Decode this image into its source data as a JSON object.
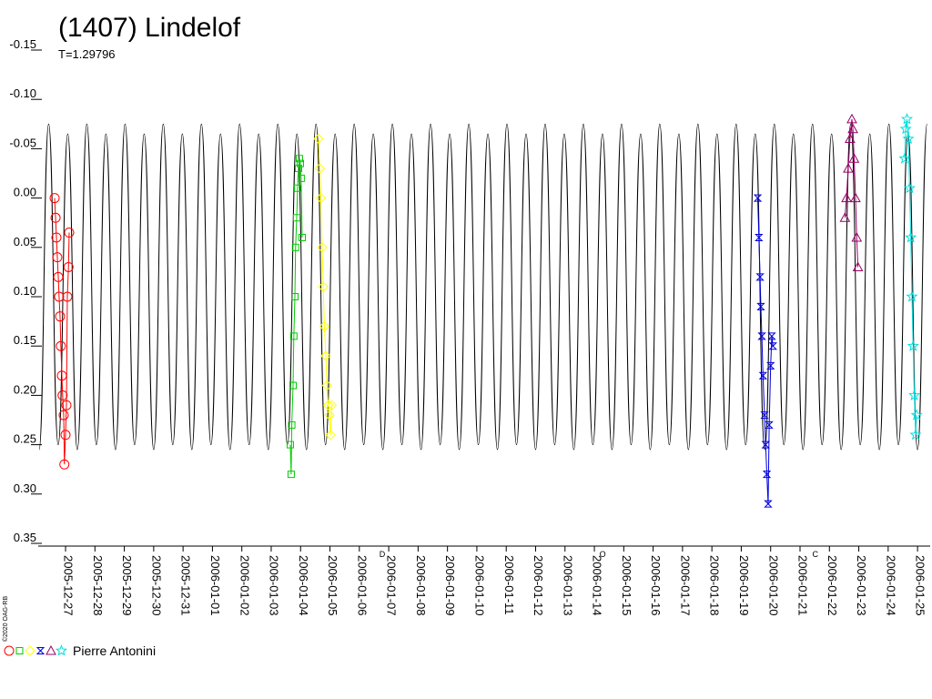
{
  "chart_data": {
    "type": "lightcurve",
    "title": "(1407) Lindelof",
    "subtitle": "T=1.29796",
    "credit": "©2020 OAG-RB",
    "legend": "Pierre Antonini",
    "xlim": [
      2453730.57,
      2453760.93
    ],
    "ylim": [
      -0.15,
      0.35
    ],
    "y_inverted": true,
    "yticks": [
      -0.15,
      {
        "value": -0.1,
        "label": "-0.10"
      },
      -0.05,
      {
        "value": 0,
        "label": "0.00"
      },
      0.05,
      {
        "value": 0.1,
        "label": "0.10"
      },
      0.15,
      {
        "value": 0.2,
        "label": "0.20"
      },
      0.25,
      {
        "value": 0.3,
        "label": "0.30"
      },
      0.35
    ],
    "xticks": [
      {
        "value": 2453731.5,
        "label": "2005-12-27"
      },
      {
        "value": 2453732.5,
        "label": "2005-12-28"
      },
      {
        "value": 2453733.5,
        "label": "2005-12-29"
      },
      {
        "value": 2453734.5,
        "label": "2005-12-30"
      },
      {
        "value": 2453735.5,
        "label": "2005-12-31"
      },
      {
        "value": 2453736.5,
        "label": "2006-01-01"
      },
      {
        "value": 2453737.5,
        "label": "2006-01-02"
      },
      {
        "value": 2453738.5,
        "label": "2006-01-03"
      },
      {
        "value": 2453739.5,
        "label": "2006-01-04"
      },
      {
        "value": 2453740.5,
        "label": "2006-01-05"
      },
      {
        "value": 2453741.5,
        "label": "2006-01-06"
      },
      {
        "value": 2453742.5,
        "label": "2006-01-07"
      },
      {
        "value": 2453743.5,
        "label": "2006-01-08"
      },
      {
        "value": 2453744.5,
        "label": "2006-01-09"
      },
      {
        "value": 2453745.5,
        "label": "2006-01-10"
      },
      {
        "value": 2453746.5,
        "label": "2006-01-11"
      },
      {
        "value": 2453747.5,
        "label": "2006-01-12"
      },
      {
        "value": 2453748.5,
        "label": "2006-01-13"
      },
      {
        "value": 2453749.5,
        "label": "2006-01-14"
      },
      {
        "value": 2453750.5,
        "label": "2006-01-15"
      },
      {
        "value": 2453751.5,
        "label": "2006-01-16"
      },
      {
        "value": 2453752.5,
        "label": "2006-01-17"
      },
      {
        "value": 2453753.5,
        "label": "2006-01-18"
      },
      {
        "value": 2453754.5,
        "label": "2006-01-19"
      },
      {
        "value": 2453755.5,
        "label": "2006-01-20"
      },
      {
        "value": 2453756.5,
        "label": "2006-01-21"
      },
      {
        "value": 2453757.5,
        "label": "2006-01-22"
      },
      {
        "value": 2453758.5,
        "label": "2006-01-23"
      },
      {
        "value": 2453759.5,
        "label": "2006-01-24"
      },
      {
        "value": 2453760.5,
        "label": "2006-01-25"
      }
    ],
    "annotations": [
      {
        "text": "D",
        "x": 2453742.28
      },
      {
        "text": "O",
        "x": 2453749.78
      },
      {
        "text": "C",
        "x": 2453757.02
      }
    ],
    "model": {
      "color": "#000000",
      "x": [
        2453730.6,
        2453730.925,
        2453731.25,
        2453731.575,
        2453731.9,
        2453732.225,
        2453732.55,
        2453732.875,
        2453733.2,
        2453733.525,
        2453733.85,
        2453734.175,
        2453734.5,
        2453734.825,
        2453735.15,
        2453735.475,
        2453735.8,
        2453736.125,
        2453736.45,
        2453736.775,
        2453737.1,
        2453737.425,
        2453737.75,
        2453738.075,
        2453738.4,
        2453738.725,
        2453739.05,
        2453739.375,
        2453739.7,
        2453740.025,
        2453740.35,
        2453740.675,
        2453741.0,
        2453741.325,
        2453741.65,
        2453741.975,
        2453742.3,
        2453742.625,
        2453742.95,
        2453743.275,
        2453743.6,
        2453743.925,
        2453744.25,
        2453744.575,
        2453744.9,
        2453745.225,
        2453745.55,
        2453745.875,
        2453746.2,
        2453746.525,
        2453746.85,
        2453747.175,
        2453747.5,
        2453747.825,
        2453748.15,
        2453748.475,
        2453748.8,
        2453749.125,
        2453749.45,
        2453749.775,
        2453750.1,
        2453750.425,
        2453750.75,
        2453751.075,
        2453751.4,
        2453751.725,
        2453752.05,
        2453752.375,
        2453752.7,
        2453753.025,
        2453753.35,
        2453753.675,
        2453754.0,
        2453754.325,
        2453754.65,
        2453754.975,
        2453755.3,
        2453755.625,
        2453755.95,
        2453756.275,
        2453756.6,
        2453756.925,
        2453757.25,
        2453757.575,
        2453757.9,
        2453758.225,
        2453758.55,
        2453758.875,
        2453759.2,
        2453759.525,
        2453759.85,
        2453760.175,
        2453760.5,
        2453760.825
      ],
      "values": [
        0.255,
        -0.075,
        0.25,
        -0.065,
        0.255,
        -0.075,
        0.25,
        -0.065,
        0.255,
        -0.075,
        0.25,
        -0.065,
        0.255,
        -0.075,
        0.25,
        -0.065,
        0.255,
        -0.075,
        0.25,
        -0.065,
        0.255,
        -0.075,
        0.25,
        -0.065,
        0.255,
        -0.075,
        0.25,
        -0.065,
        0.255,
        -0.075,
        0.25,
        -0.065,
        0.255,
        -0.075,
        0.25,
        -0.065,
        0.255,
        -0.075,
        0.25,
        -0.065,
        0.255,
        -0.075,
        0.25,
        -0.065,
        0.255,
        -0.075,
        0.25,
        -0.065,
        0.255,
        -0.075,
        0.25,
        -0.065,
        0.255,
        -0.075,
        0.25,
        -0.065,
        0.255,
        -0.075,
        0.25,
        -0.065,
        0.255,
        -0.075,
        0.25,
        -0.065,
        0.255,
        -0.075,
        0.25,
        -0.065,
        0.255,
        -0.075,
        0.25,
        -0.065,
        0.255,
        -0.075,
        0.25,
        -0.065,
        0.255,
        -0.075,
        0.25,
        -0.065,
        0.255,
        -0.075,
        0.25,
        -0.065,
        0.255,
        -0.075,
        0.25,
        -0.065,
        0.255,
        -0.075,
        0.25,
        -0.065,
        0.255,
        -0.075
      ]
    },
    "series": [
      {
        "color": "#ff0000",
        "marker": "circle",
        "x": [
          2453731.128,
          2453731.16,
          2453731.19,
          2453731.22,
          2453731.252,
          2453731.28,
          2453731.313,
          2453731.34,
          2453731.375,
          2453731.4,
          2453731.437,
          2453731.46,
          2453731.499,
          2453731.53,
          2453731.561,
          2453731.6,
          2453731.623
        ],
        "values": [
          0.0,
          0.02,
          0.04,
          0.06,
          0.08,
          0.1,
          0.12,
          0.15,
          0.18,
          0.2,
          0.22,
          0.27,
          0.24,
          0.21,
          0.1,
          0.07,
          0.035
        ]
      },
      {
        "color": "#00cc00",
        "marker": "square",
        "x": [
          2453739.15,
          2453739.18,
          2453739.2,
          2453739.244,
          2453739.27,
          2453739.306,
          2453739.33,
          2453739.368,
          2453739.4,
          2453739.43,
          2453739.46,
          2453739.492,
          2453739.52,
          2453739.554
        ],
        "values": [
          0.25,
          0.28,
          0.23,
          0.19,
          0.14,
          0.1,
          0.05,
          0.02,
          -0.01,
          -0.03,
          -0.04,
          -0.035,
          -0.02,
          0.04
        ]
      },
      {
        "color": "#ffff00",
        "marker": "diamond",
        "x": [
          2453740.11,
          2453740.15,
          2453740.19,
          2453740.235,
          2453740.27,
          2453740.31,
          2453740.359,
          2453740.4,
          2453740.44,
          2453740.483,
          2453740.52,
          2453740.56
        ],
        "values": [
          -0.06,
          -0.03,
          0.0,
          0.05,
          0.09,
          0.13,
          0.16,
          0.19,
          0.21,
          0.22,
          0.24,
          0.21
        ]
      },
      {
        "color": "#0000dd",
        "marker": "bowtie",
        "x": [
          2453755.06,
          2453755.1,
          2453755.14,
          2453755.167,
          2453755.2,
          2453755.24,
          2453755.291,
          2453755.33,
          2453755.37,
          2453755.415,
          2453755.45,
          2453755.5,
          2453755.539,
          2453755.58
        ],
        "values": [
          0.0,
          0.04,
          0.08,
          0.11,
          0.14,
          0.18,
          0.22,
          0.25,
          0.28,
          0.31,
          0.23,
          0.17,
          0.14,
          0.15
        ]
      },
      {
        "color": "#990066",
        "marker": "triangle",
        "x": [
          2453758.03,
          2453758.08,
          2453758.141,
          2453758.2,
          2453758.265,
          2453758.3,
          2453758.34,
          2453758.389,
          2453758.43,
          2453758.47
        ],
        "values": [
          0.02,
          0.0,
          -0.03,
          -0.06,
          -0.08,
          -0.07,
          -0.04,
          0.0,
          0.04,
          0.07
        ]
      },
      {
        "color": "#00dddd",
        "marker": "star",
        "x": [
          2453760.06,
          2453760.1,
          2453760.14,
          2453760.186,
          2453760.23,
          2453760.27,
          2453760.31,
          2453760.35,
          2453760.39,
          2453760.434,
          2453760.47
        ],
        "values": [
          -0.04,
          -0.07,
          -0.08,
          -0.06,
          -0.01,
          0.04,
          0.1,
          0.15,
          0.2,
          0.24,
          0.22
        ]
      }
    ]
  }
}
